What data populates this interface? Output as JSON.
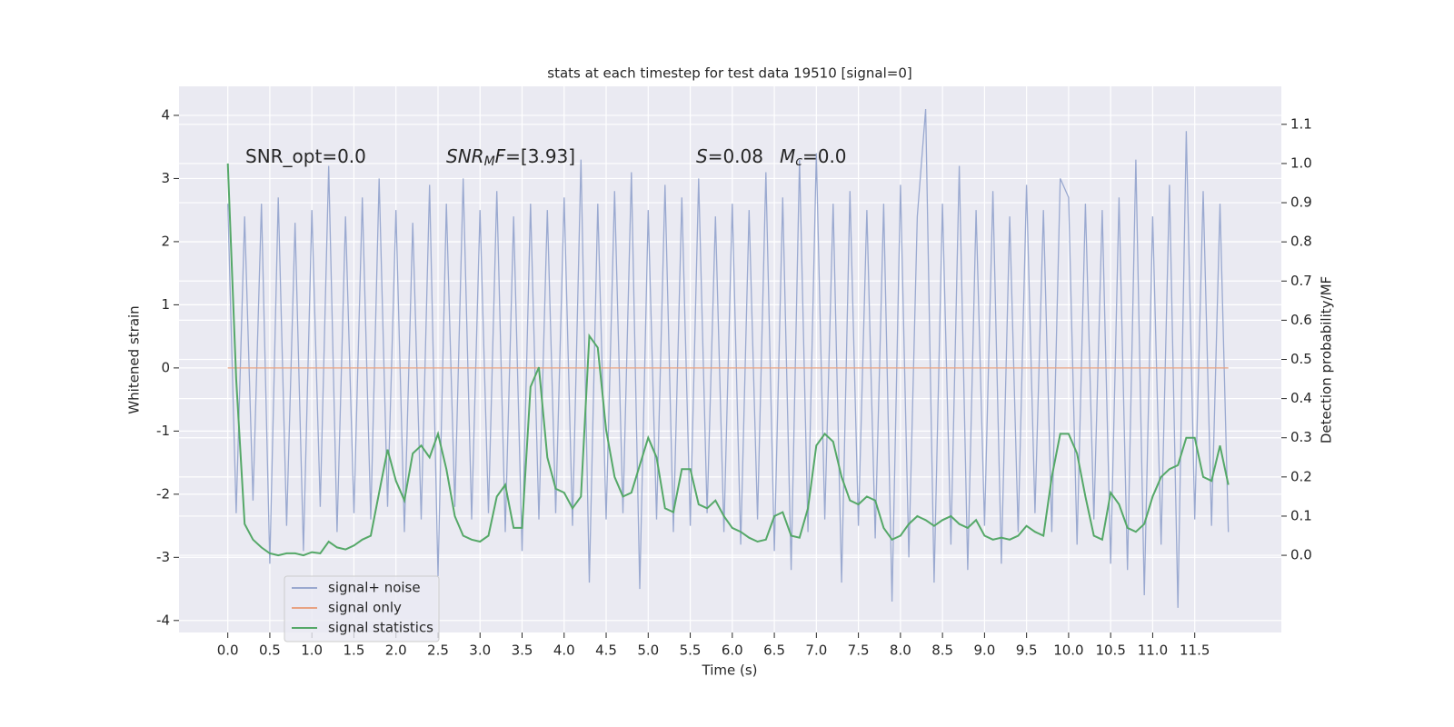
{
  "chart_data": {
    "type": "line",
    "title": "stats at each timestep for test data 19510 [signal=0]",
    "xlabel": "Time (s)",
    "ylabel": "Whitened strain",
    "y2label": "Detection probability/MF",
    "x": [
      0,
      0.1,
      0.2,
      0.3,
      0.4,
      0.5,
      0.6,
      0.7,
      0.8,
      0.9,
      1,
      1.1,
      1.2,
      1.3,
      1.4,
      1.5,
      1.6,
      1.7,
      1.8,
      1.9,
      2,
      2.1,
      2.2,
      2.3,
      2.4,
      2.5,
      2.6,
      2.7,
      2.8,
      2.9,
      3,
      3.1,
      3.2,
      3.3,
      3.4,
      3.5,
      3.6,
      3.7,
      3.8,
      3.9,
      4,
      4.1,
      4.2,
      4.3,
      4.4,
      4.5,
      4.6,
      4.7,
      4.8,
      4.9,
      5,
      5.1,
      5.2,
      5.3,
      5.4,
      5.5,
      5.6,
      5.7,
      5.8,
      5.9,
      6,
      6.1,
      6.2,
      6.3,
      6.4,
      6.5,
      6.6,
      6.7,
      6.8,
      6.9,
      7,
      7.1,
      7.2,
      7.3,
      7.4,
      7.5,
      7.6,
      7.7,
      7.8,
      7.9,
      8,
      8.1,
      8.2,
      8.3,
      8.4,
      8.5,
      8.6,
      8.7,
      8.8,
      8.9,
      9,
      9.1,
      9.2,
      9.3,
      9.4,
      9.5,
      9.6,
      9.7,
      9.8,
      9.9,
      10,
      10.1,
      10.2,
      10.3,
      10.4,
      10.5,
      10.6,
      10.7,
      10.8,
      10.9,
      11,
      11.1,
      11.2,
      11.3,
      11.4,
      11.5,
      11.6,
      11.7,
      11.8,
      11.9
    ],
    "series": [
      {
        "name": "signal+ noise",
        "color": "#9aa9d0",
        "values": [
          2.6,
          -2.3,
          2.4,
          -2.1,
          2.6,
          -3.1,
          2.7,
          -2.5,
          2.3,
          -2.9,
          2.5,
          -2.2,
          3.2,
          -2.6,
          2.4,
          -2.3,
          2.7,
          -2.4,
          3.0,
          -2.2,
          2.5,
          -2.6,
          2.3,
          -2.4,
          2.9,
          -3.3,
          2.6,
          -2.2,
          3.0,
          -2.4,
          2.5,
          -2.3,
          2.8,
          -2.6,
          2.4,
          -2.9,
          2.6,
          -2.4,
          2.5,
          -2.3,
          2.7,
          -2.5,
          3.3,
          -3.4,
          2.6,
          -2.4,
          2.8,
          -2.3,
          3.1,
          -3.5,
          2.5,
          -2.4,
          2.9,
          -2.6,
          2.7,
          -2.5,
          3.0,
          -2.3,
          2.4,
          -2.6,
          2.6,
          -2.8,
          2.5,
          -2.4,
          3.1,
          -2.9,
          2.7,
          -3.2,
          3.3,
          -2.6,
          3.4,
          -2.4,
          2.6,
          -3.4,
          2.8,
          -2.5,
          2.5,
          -2.7,
          2.6,
          -3.7,
          2.9,
          -3.0,
          2.4,
          4.1,
          -3.4,
          2.6,
          -2.8,
          3.2,
          -3.2,
          2.5,
          -2.5,
          2.8,
          -3.1,
          2.4,
          -2.6,
          2.9,
          -2.3,
          2.5,
          -2.6,
          3.0,
          2.7,
          -2.8,
          2.6,
          -2.4,
          2.5,
          -3.1,
          2.7,
          -3.2,
          3.3,
          -3.6,
          2.4,
          -2.8,
          2.9,
          -3.8,
          3.75,
          -2.4,
          2.8,
          -2.5,
          2.6,
          -2.6
        ]
      },
      {
        "name": "signal only",
        "color": "#e8a383",
        "values": [
          0,
          0,
          0,
          0,
          0,
          0,
          0,
          0,
          0,
          0,
          0,
          0,
          0,
          0,
          0,
          0,
          0,
          0,
          0,
          0,
          0,
          0,
          0,
          0,
          0,
          0,
          0,
          0,
          0,
          0,
          0,
          0,
          0,
          0,
          0,
          0,
          0,
          0,
          0,
          0,
          0,
          0,
          0,
          0,
          0,
          0,
          0,
          0,
          0,
          0,
          0,
          0,
          0,
          0,
          0,
          0,
          0,
          0,
          0,
          0,
          0,
          0,
          0,
          0,
          0,
          0,
          0,
          0,
          0,
          0,
          0,
          0,
          0,
          0,
          0,
          0,
          0,
          0,
          0,
          0,
          0,
          0,
          0,
          0,
          0,
          0,
          0,
          0,
          0,
          0,
          0,
          0,
          0,
          0,
          0,
          0,
          0,
          0,
          0,
          0,
          0,
          0,
          0,
          0,
          0,
          0,
          0,
          0,
          0,
          0,
          0,
          0,
          0,
          0,
          0,
          0,
          0,
          0,
          0,
          0
        ]
      },
      {
        "name": "signal statistics",
        "color": "#55a868",
        "axis": "y2",
        "values": [
          1.0,
          0.45,
          0.08,
          0.04,
          0.02,
          0.005,
          0.0,
          0.005,
          0.005,
          0.0,
          0.008,
          0.005,
          0.035,
          0.02,
          0.015,
          0.025,
          0.04,
          0.05,
          0.16,
          0.27,
          0.19,
          0.14,
          0.26,
          0.28,
          0.25,
          0.31,
          0.22,
          0.1,
          0.05,
          0.04,
          0.035,
          0.05,
          0.15,
          0.18,
          0.07,
          0.07,
          0.43,
          0.48,
          0.25,
          0.17,
          0.16,
          0.12,
          0.15,
          0.56,
          0.53,
          0.32,
          0.2,
          0.15,
          0.16,
          0.23,
          0.3,
          0.25,
          0.12,
          0.11,
          0.22,
          0.22,
          0.13,
          0.12,
          0.14,
          0.1,
          0.07,
          0.06,
          0.045,
          0.035,
          0.04,
          0.1,
          0.11,
          0.05,
          0.045,
          0.12,
          0.28,
          0.31,
          0.29,
          0.2,
          0.14,
          0.13,
          0.15,
          0.14,
          0.07,
          0.04,
          0.05,
          0.08,
          0.1,
          0.09,
          0.075,
          0.09,
          0.1,
          0.08,
          0.07,
          0.09,
          0.05,
          0.04,
          0.045,
          0.04,
          0.05,
          0.075,
          0.06,
          0.05,
          0.2,
          0.31,
          0.31,
          0.26,
          0.15,
          0.05,
          0.04,
          0.16,
          0.13,
          0.07,
          0.06,
          0.08,
          0.15,
          0.2,
          0.22,
          0.23,
          0.3,
          0.3,
          0.2,
          0.19,
          0.28,
          0.18
        ]
      }
    ],
    "xlim": [
      -0.58,
      12.53
    ],
    "xticks": [
      {
        "value": 0,
        "label": "0.0"
      },
      0.5,
      {
        "value": 1,
        "label": "1.0"
      },
      1.5,
      {
        "value": 2,
        "label": "2.0"
      },
      2.5,
      {
        "value": 3,
        "label": "3.0"
      },
      3.5,
      {
        "value": 4,
        "label": "4.0"
      },
      4.5,
      {
        "value": 5,
        "label": "5.0"
      },
      5.5,
      {
        "value": 6,
        "label": "6.0"
      },
      6.5,
      {
        "value": 7,
        "label": "7.0"
      },
      7.5,
      {
        "value": 8,
        "label": "8.0"
      },
      8.5,
      {
        "value": 9,
        "label": "9.0"
      },
      9.5,
      {
        "value": 10,
        "label": "10.0"
      },
      10.5,
      {
        "value": 11,
        "label": "11.0"
      },
      11.5
    ],
    "ylim": [
      -4.19,
      4.46
    ],
    "yticks": [
      -4,
      -3,
      -2,
      -1,
      0,
      1,
      2,
      3,
      4
    ],
    "y2lim": [
      -0.197,
      1.197
    ],
    "y2ticks": [
      {
        "value": 0,
        "label": "0.0"
      },
      0.1,
      0.2,
      0.3,
      0.4,
      0.5,
      0.6,
      0.7,
      0.8,
      0.9,
      {
        "value": 1,
        "label": "1.0"
      },
      1.1
    ],
    "grid": true,
    "legend": "lower left",
    "annotations": [
      [
        {
          "text": "SNR_opt=0.0",
          "italic": false,
          "sub": false
        }
      ],
      [
        {
          "text": "SNR",
          "italic": true,
          "sub": false
        },
        {
          "text": "M",
          "italic": true,
          "sub": true
        },
        {
          "text": "F",
          "italic": true,
          "sub": false
        },
        {
          "text": "=[3.93]",
          "italic": false,
          "sub": false
        }
      ],
      [
        {
          "text": "S",
          "italic": true,
          "sub": false
        },
        {
          "text": "=0.08",
          "italic": false,
          "sub": false
        }
      ],
      [
        {
          "text": "M",
          "italic": true,
          "sub": false
        },
        {
          "text": "c",
          "italic": true,
          "sub": true
        },
        {
          "text": "=0.0",
          "italic": false,
          "sub": false
        }
      ]
    ]
  }
}
